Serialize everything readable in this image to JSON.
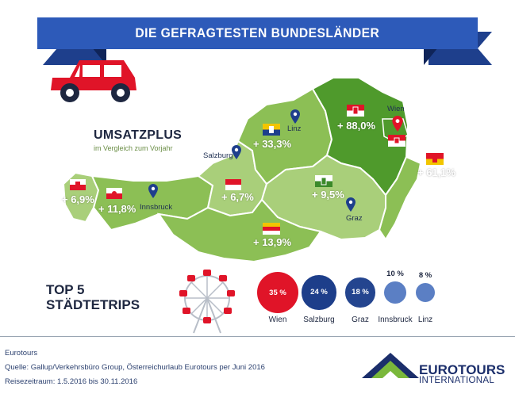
{
  "banner": {
    "title": "DIE GEFRAGTESTEN BUNDESLÄNDER"
  },
  "umsatz": {
    "title": "UMSATZPLUS",
    "subtitle": "im Vergleich zum Vorjahr"
  },
  "regions": [
    {
      "name": "Vorarlberg",
      "change": "+ 6,9%"
    },
    {
      "name": "Tirol",
      "change": "+ 11,8%"
    },
    {
      "name": "Salzburg",
      "change": "+ 6,7%"
    },
    {
      "name": "Oberösterreich",
      "change": "+ 33,3%"
    },
    {
      "name": "Niederösterreich",
      "change": "+ 88,0%"
    },
    {
      "name": "Burgenland",
      "change": "+ 61,1%"
    },
    {
      "name": "Steiermark",
      "change": "+ 9,5%"
    },
    {
      "name": "Kärnten",
      "change": "+ 13,9%"
    }
  ],
  "cities": {
    "linz": "Linz",
    "salzburg": "Salzburg",
    "innsbruck": "Innsbruck",
    "graz": "Graz",
    "wien": "Wien"
  },
  "top5": {
    "title_line1": "TOP 5",
    "title_line2": "STÄDTETRIPS",
    "items": [
      {
        "city": "Wien",
        "pct": "35 %",
        "share": 35,
        "color": "#e01428"
      },
      {
        "city": "Salzburg",
        "pct": "24 %",
        "share": 24,
        "color": "#1d3e8a"
      },
      {
        "city": "Graz",
        "pct": "18 %",
        "share": 18,
        "color": "#24458f"
      },
      {
        "city": "Innsbruck",
        "pct": "10 %",
        "share": 10,
        "color": "#5b7fc4"
      },
      {
        "city": "Linz",
        "pct": "8 %",
        "share": 8,
        "color": "#5b7fc4"
      }
    ]
  },
  "footer": {
    "line1": "Eurotours",
    "line2": "Quelle: Gallup/Verkehrsbüro Group, Österreichurlaub Eurotours per Juni 2016",
    "line3": "Reisezeitraum: 1.5.2016 bis 30.11.2016"
  },
  "logo": {
    "name": "EUROTOURS",
    "sub": "INTERNATIONAL"
  },
  "colors": {
    "banner": "#2d5ab9",
    "region_light": "#a9cf7a",
    "region_mid": "#8cbf55",
    "region_dark": "#4f9a2c",
    "pin": "#1e3f8c",
    "car": "#e01428"
  }
}
